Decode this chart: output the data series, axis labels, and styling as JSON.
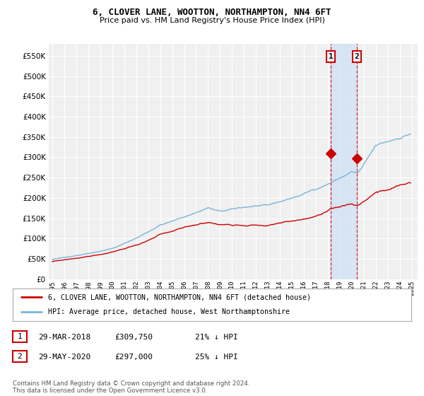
{
  "title": "6, CLOVER LANE, WOOTTON, NORTHAMPTON, NN4 6FT",
  "subtitle": "Price paid vs. HM Land Registry's House Price Index (HPI)",
  "legend_line1": "6, CLOVER LANE, WOOTTON, NORTHAMPTON, NN4 6FT (detached house)",
  "legend_line2": "HPI: Average price, detached house, West Northamptonshire",
  "annotation1_date": "29-MAR-2018",
  "annotation1_price": "£309,750",
  "annotation1_hpi": "21% ↓ HPI",
  "annotation2_date": "29-MAY-2020",
  "annotation2_price": "£297,000",
  "annotation2_hpi": "25% ↓ HPI",
  "footer": "Contains HM Land Registry data © Crown copyright and database right 2024.\nThis data is licensed under the Open Government Licence v3.0.",
  "hpi_color": "#7ab4d8",
  "price_color": "#cc0000",
  "marker1_x": 2018.25,
  "marker2_x": 2020.42,
  "marker1_y": 309750,
  "marker2_y": 297000,
  "vline1_x": 2018.25,
  "vline2_x": 2020.42,
  "ylim_min": 0,
  "ylim_max": 580000,
  "xlim_min": 1994.7,
  "xlim_max": 2025.5,
  "background_color": "#ffffff",
  "plot_bg_color": "#f0f0f0",
  "grid_color": "#ffffff",
  "shaded_x1": 2018.25,
  "shaded_x2": 2020.42,
  "yticks": [
    0,
    50000,
    100000,
    150000,
    200000,
    250000,
    300000,
    350000,
    400000,
    450000,
    500000,
    550000
  ],
  "xticks": [
    1995,
    1996,
    1997,
    1998,
    1999,
    2000,
    2001,
    2002,
    2003,
    2004,
    2005,
    2006,
    2007,
    2008,
    2009,
    2010,
    2011,
    2012,
    2013,
    2014,
    2015,
    2016,
    2017,
    2018,
    2019,
    2020,
    2021,
    2022,
    2023,
    2024,
    2025
  ]
}
